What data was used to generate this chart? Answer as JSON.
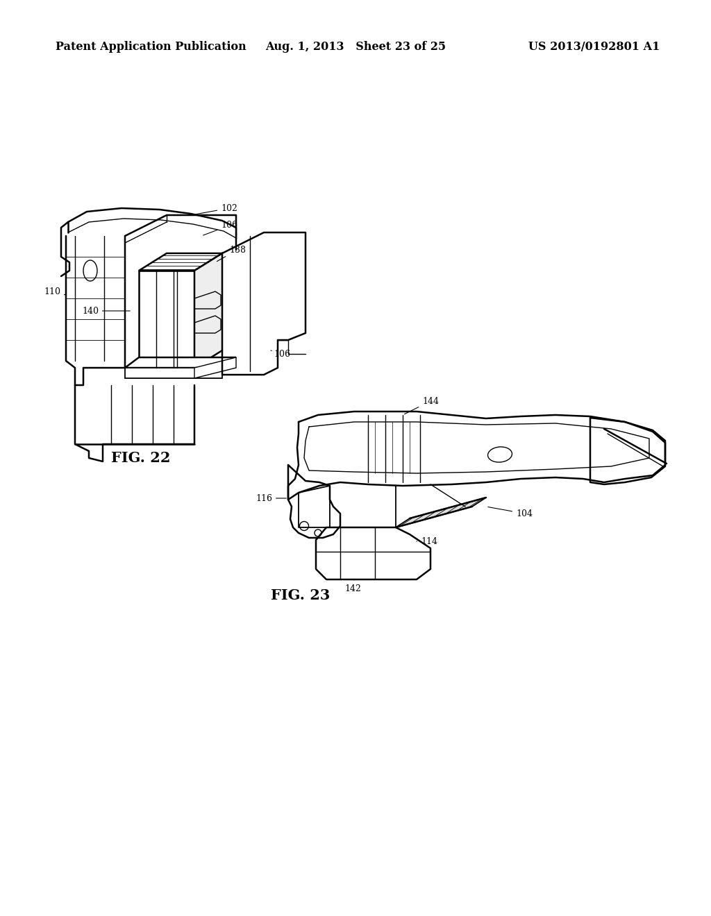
{
  "background_color": "#ffffff",
  "header": {
    "left_text": "Patent Application Publication",
    "center_text": "Aug. 1, 2013   Sheet 23 of 25",
    "right_text": "US 2013/0192801 A1",
    "fontsize": 11.5
  },
  "fig22_label": "FIG. 22",
  "fig23_label": "FIG. 23",
  "label_fontsize": 15
}
